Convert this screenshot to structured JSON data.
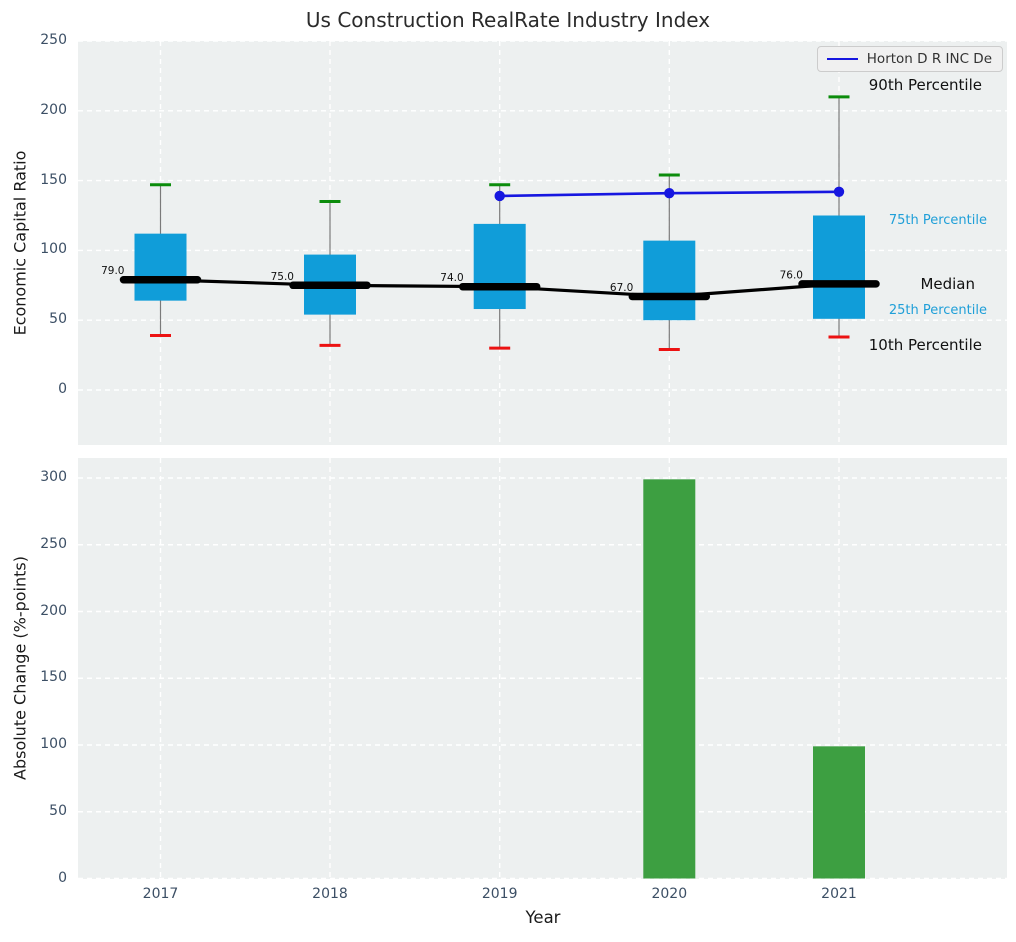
{
  "title": "Us Construction RealRate Industry Index",
  "colors": {
    "panel_bg": "#edf0f0",
    "grid": "#ffffff",
    "box_fill": "#109dd9",
    "whisker": "#7a7a7a",
    "cap_high": "#0b8c0b",
    "cap_low": "#ec1212",
    "median": "#000000",
    "company_line": "#1616e0",
    "bar": "#3d9f41",
    "annotation_blue": "#1f9fd8",
    "tick_text": "#3c4f65"
  },
  "chart_data": [
    {
      "type": "boxplot+line",
      "title": "Us Construction RealRate Industry Index",
      "ylabel": "Economic Capital Ratio",
      "categories": [
        "2017",
        "2018",
        "2019",
        "2020",
        "2021"
      ],
      "yticks": [
        0,
        50,
        100,
        150,
        200,
        250
      ],
      "ylim": [
        -39,
        250
      ],
      "grid": "white dashed, horizontal at yticks and vertical at categories",
      "legend": {
        "label": "Horton D R INC De",
        "position": "upper right"
      },
      "boxes": [
        {
          "year": "2017",
          "p90": 147,
          "p75": 112,
          "median": 79,
          "p25": 64,
          "p10": 39,
          "median_label": "79.0"
        },
        {
          "year": "2018",
          "p90": 135,
          "p75": 97,
          "median": 75,
          "p25": 54,
          "p10": 32,
          "median_label": "75.0"
        },
        {
          "year": "2019",
          "p90": 147,
          "p75": 119,
          "median": 74,
          "p25": 58,
          "p10": 30,
          "median_label": "74.0"
        },
        {
          "year": "2020",
          "p90": 154,
          "p75": 107,
          "median": 67,
          "p25": 50,
          "p10": 29,
          "median_label": "67.0"
        },
        {
          "year": "2021",
          "p90": 210,
          "p75": 125,
          "median": 76,
          "p25": 51,
          "p10": 38,
          "median_label": "76.0"
        }
      ],
      "company_series": {
        "name": "Horton D R INC De",
        "x": [
          "2019",
          "2020",
          "2021"
        ],
        "y": [
          139,
          141,
          142
        ]
      },
      "annotations": [
        "90th Percentile",
        "75th Percentile",
        "Median",
        "25th Percentile",
        "10th Percentile"
      ]
    },
    {
      "type": "bar",
      "categories": [
        "2017",
        "2018",
        "2019",
        "2020",
        "2021"
      ],
      "values": [
        null,
        null,
        null,
        299,
        99
      ],
      "xlabel": "Year",
      "ylabel": "Absolute Change (%-points)",
      "yticks": [
        0,
        50,
        100,
        150,
        200,
        250,
        300
      ],
      "ylim": [
        0,
        315
      ],
      "grid": "white dashed, horizontal at yticks and vertical at categories"
    }
  ]
}
